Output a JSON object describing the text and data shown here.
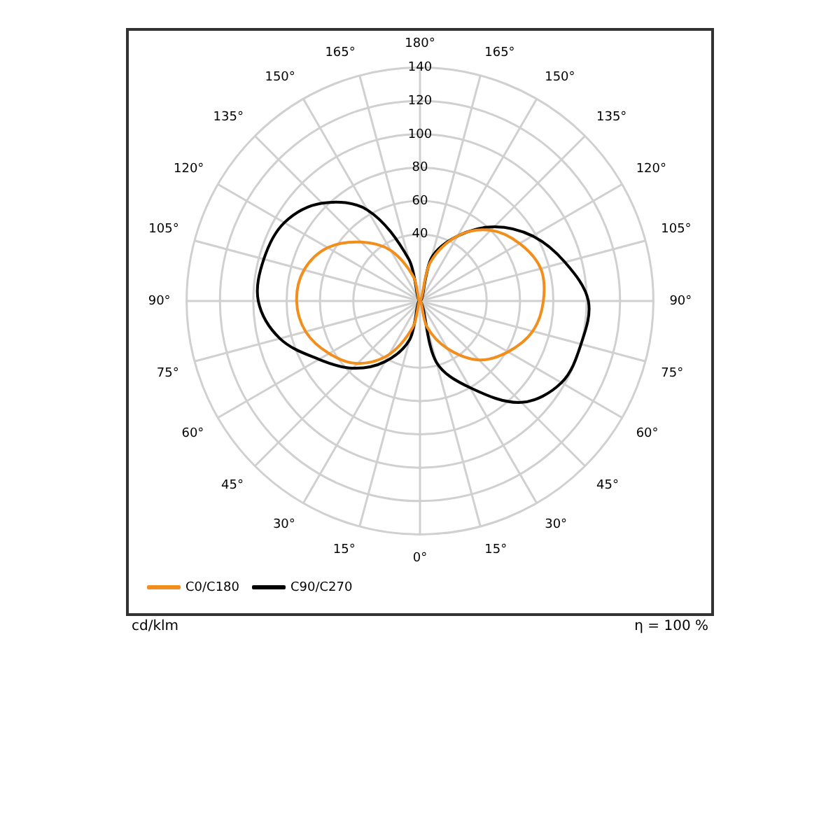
{
  "chart_data": {
    "type": "radar",
    "categories": [
      "180°",
      "165°",
      "150°",
      "135°",
      "120°",
      "105°",
      "90°",
      "75°",
      "60°",
      "45°",
      "30°",
      "15°",
      "0°",
      "15°",
      "30°",
      "45°",
      "60°",
      "75°",
      "90°",
      "105°",
      "120°",
      "135°",
      "150°",
      "165°"
    ],
    "series": [
      {
        "name": "C0/C180",
        "color": "#f28e1c",
        "values": [
          0,
          24,
          45,
          60,
          69,
          75,
          74,
          70,
          61,
          50,
          33,
          16,
          0,
          16,
          37,
          53,
          63,
          71,
          74,
          72,
          64,
          50,
          35,
          15
        ]
      },
      {
        "name": "C90/C270",
        "color": "#000000",
        "values": [
          0,
          27,
          45,
          63,
          78,
          90,
          101,
          100,
          98,
          86,
          60,
          38,
          0,
          24,
          42,
          57,
          70,
          87,
          97,
          97,
          94,
          83,
          63,
          26
        ]
      }
    ],
    "ylim": [
      0,
      140
    ],
    "yticks": [
      40,
      60,
      80,
      100,
      120,
      140
    ],
    "grid": true,
    "legend": "bottom left",
    "annotations": [
      "cd/klm",
      "η = 100 %"
    ]
  }
}
